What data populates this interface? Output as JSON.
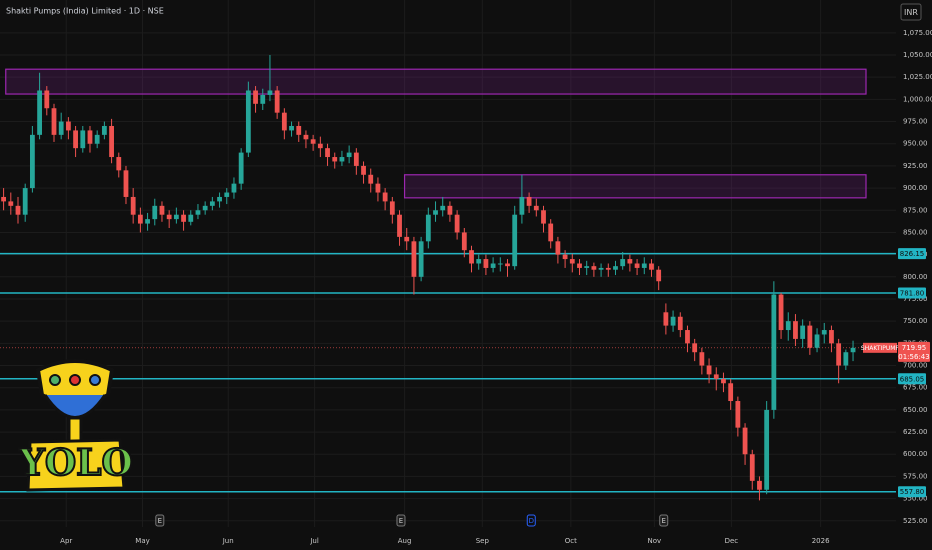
{
  "chart_data": {
    "type": "candlestick",
    "title": "Shakti Pumps (India) Limited · 1D · NSE",
    "currency": "INR",
    "symbol": "SHAKTIPUMP",
    "countdown": "01:56:43",
    "logo_text": "YOLO",
    "up_color": "#26a69a",
    "down_color": "#ef5350",
    "grid": true,
    "xlim": [
      -0.5,
      119.8
    ],
    "ylim": [
      518,
      1112
    ],
    "xticks": [
      {
        "value": 8.7,
        "label": "Apr"
      },
      {
        "value": 19.3,
        "label": "May"
      },
      {
        "value": 31.2,
        "label": "Jun"
      },
      {
        "value": 43.2,
        "label": "Jul"
      },
      {
        "value": 55.7,
        "label": "Aug"
      },
      {
        "value": 66.5,
        "label": "Sep"
      },
      {
        "value": 78.8,
        "label": "Oct"
      },
      {
        "value": 90.4,
        "label": "Nov"
      },
      {
        "value": 101.1,
        "label": "Dec"
      },
      {
        "value": 113.5,
        "label": "2026"
      }
    ],
    "yticks": [
      {
        "value": 525,
        "label": "525.00"
      },
      {
        "value": 550,
        "label": "550.00"
      },
      {
        "value": 575,
        "label": "575.00"
      },
      {
        "value": 600,
        "label": "600.00"
      },
      {
        "value": 625,
        "label": "625.00"
      },
      {
        "value": 650,
        "label": "650.00"
      },
      {
        "value": 675,
        "label": "675.00"
      },
      {
        "value": 700,
        "label": "700.00"
      },
      {
        "value": 725,
        "label": "725.00"
      },
      {
        "value": 750,
        "label": "750.00"
      },
      {
        "value": 775,
        "label": "775.00"
      },
      {
        "value": 800,
        "label": "800.00"
      },
      {
        "value": 825,
        "label": "825.00"
      },
      {
        "value": 850,
        "label": "850.00"
      },
      {
        "value": 875,
        "label": "875.00"
      },
      {
        "value": 900,
        "label": "900.00"
      },
      {
        "value": 925,
        "label": "925.00"
      },
      {
        "value": 950,
        "label": "950.00"
      },
      {
        "value": 975,
        "label": "975.00"
      },
      {
        "value": 1000,
        "label": "1,000.00"
      },
      {
        "value": 1025,
        "label": "1,025.00"
      },
      {
        "value": 1050,
        "label": "1,050.00"
      },
      {
        "value": 1075,
        "label": "1,075.00"
      }
    ],
    "levels": [
      826.15,
      {
        "value": 781.8,
        "label": "781.80"
      },
      685.05,
      {
        "value": 557.8,
        "label": "557.80"
      }
    ],
    "level_color": "#22b5c4",
    "last_price": 719.95,
    "zones": [
      {
        "x": [
          0.3,
          119.8
        ],
        "y": [
          1006,
          1034
        ]
      },
      {
        "x": [
          55.7,
          119.8
        ],
        "y": [
          889,
          915
        ]
      }
    ],
    "zone_color": "#9c27b0",
    "events": [
      {
        "label": "E",
        "x": 21.7
      },
      {
        "label": "E",
        "x": 55.2
      },
      {
        "label": "D",
        "x": 73.3
      },
      {
        "label": "E",
        "x": 91.7
      }
    ],
    "open": [
      890,
      885,
      880,
      870,
      900,
      960,
      1010,
      990,
      960,
      975,
      965,
      945,
      965,
      950,
      960,
      970,
      935,
      920,
      890,
      870,
      860,
      865,
      880,
      870,
      865,
      870,
      862,
      870,
      875,
      880,
      885,
      890,
      895,
      905,
      940,
      1010,
      995,
      1005,
      1010,
      985,
      965,
      970,
      960,
      955,
      950,
      945,
      935,
      930,
      935,
      940,
      925,
      915,
      905,
      895,
      885,
      870,
      845,
      840,
      800,
      840,
      870,
      875,
      880,
      870,
      850,
      830,
      815,
      820,
      810,
      815,
      815,
      812,
      870,
      890,
      880,
      875,
      860,
      840,
      825,
      820,
      815,
      810,
      812,
      808,
      810,
      808,
      812,
      820,
      815,
      810,
      815,
      808,
      760,
      745,
      755,
      740,
      725,
      715,
      700,
      690,
      685,
      680,
      660,
      630,
      600,
      570,
      560,
      650,
      780,
      740,
      750,
      730,
      745,
      720,
      735,
      740,
      725,
      700,
      715
    ],
    "high": [
      900,
      895,
      890,
      905,
      970,
      1030,
      1015,
      995,
      985,
      980,
      970,
      970,
      970,
      965,
      975,
      978,
      940,
      925,
      900,
      878,
      872,
      888,
      885,
      875,
      878,
      875,
      875,
      882,
      885,
      890,
      895,
      900,
      912,
      945,
      1020,
      1015,
      1012,
      1050,
      1015,
      990,
      975,
      975,
      965,
      960,
      958,
      950,
      940,
      942,
      948,
      945,
      930,
      922,
      912,
      900,
      890,
      875,
      855,
      845,
      845,
      878,
      885,
      890,
      885,
      875,
      855,
      835,
      825,
      825,
      822,
      822,
      820,
      880,
      915,
      895,
      888,
      880,
      865,
      845,
      830,
      826,
      820,
      818,
      816,
      815,
      815,
      818,
      828,
      825,
      820,
      822,
      820,
      812,
      770,
      762,
      760,
      745,
      730,
      720,
      708,
      698,
      692,
      685,
      665,
      635,
      605,
      575,
      660,
      795,
      782,
      760,
      758,
      752,
      750,
      742,
      748,
      745,
      730,
      718,
      728
    ],
    "low": [
      875,
      870,
      860,
      862,
      895,
      955,
      982,
      952,
      955,
      955,
      935,
      940,
      940,
      945,
      955,
      928,
      912,
      882,
      860,
      850,
      852,
      858,
      862,
      855,
      860,
      852,
      858,
      865,
      870,
      875,
      878,
      882,
      888,
      898,
      935,
      985,
      988,
      998,
      978,
      955,
      958,
      952,
      945,
      942,
      935,
      925,
      922,
      925,
      928,
      915,
      905,
      895,
      885,
      875,
      860,
      835,
      830,
      780,
      795,
      832,
      862,
      868,
      862,
      842,
      822,
      805,
      808,
      802,
      805,
      806,
      800,
      808,
      860,
      872,
      868,
      850,
      832,
      815,
      810,
      805,
      802,
      802,
      800,
      800,
      800,
      802,
      808,
      806,
      802,
      803,
      800,
      785,
      735,
      738,
      732,
      715,
      705,
      690,
      680,
      672,
      670,
      650,
      620,
      588,
      560,
      548,
      555,
      640,
      730,
      728,
      722,
      720,
      712,
      715,
      725,
      715,
      680,
      695,
      705
    ],
    "close": [
      885,
      880,
      870,
      900,
      960,
      1010,
      990,
      960,
      975,
      965,
      945,
      965,
      950,
      960,
      970,
      935,
      920,
      890,
      870,
      860,
      865,
      880,
      870,
      865,
      870,
      862,
      870,
      875,
      880,
      885,
      890,
      895,
      905,
      940,
      1010,
      995,
      1005,
      1010,
      985,
      965,
      970,
      960,
      955,
      950,
      945,
      935,
      930,
      935,
      940,
      925,
      915,
      905,
      895,
      885,
      870,
      845,
      840,
      800,
      840,
      870,
      875,
      880,
      870,
      850,
      830,
      815,
      820,
      810,
      815,
      815,
      812,
      870,
      890,
      880,
      875,
      860,
      840,
      825,
      820,
      815,
      810,
      812,
      808,
      810,
      808,
      812,
      820,
      815,
      810,
      815,
      808,
      795,
      745,
      755,
      740,
      725,
      715,
      700,
      690,
      685,
      680,
      660,
      630,
      600,
      570,
      560,
      650,
      780,
      740,
      750,
      730,
      745,
      720,
      735,
      740,
      725,
      700,
      715,
      719.95
    ]
  }
}
